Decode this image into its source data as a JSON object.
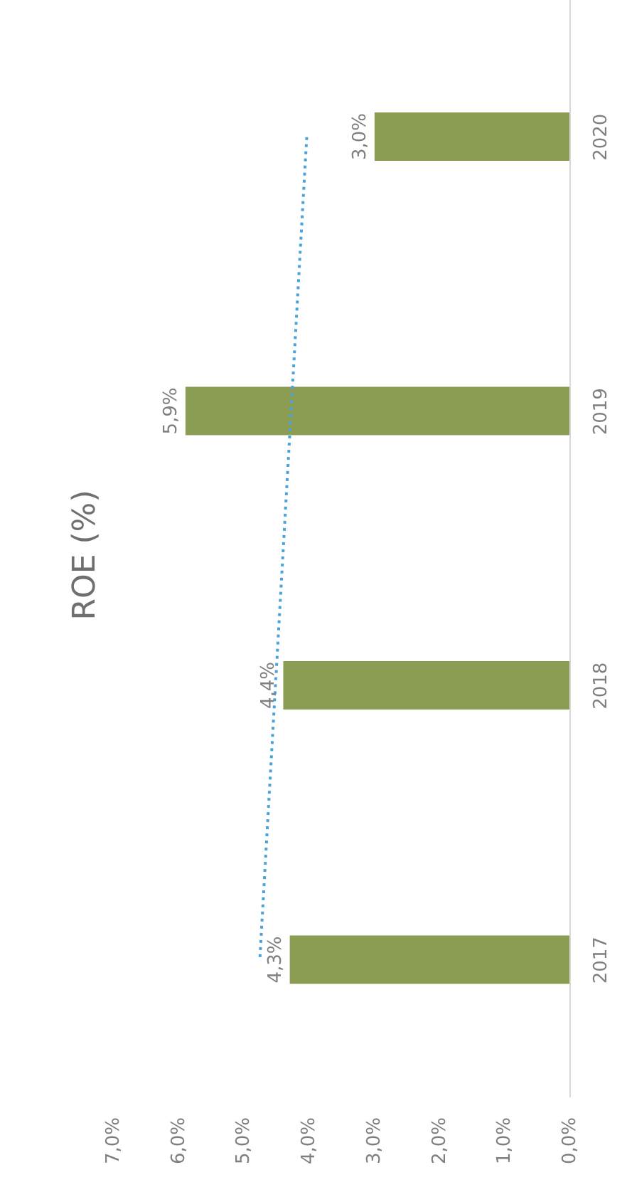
{
  "chart_data": {
    "type": "bar",
    "orientation": "horizontal",
    "title": "ROE (%)",
    "categories": [
      "2020",
      "2019",
      "2018",
      "2017"
    ],
    "series": [
      {
        "color": "#8b9d52",
        "values": [
          3.0,
          5.9,
          4.4,
          4.3
        ],
        "value_labels": [
          "3,0%",
          "5,9%",
          "4,4%",
          "4,3%"
        ]
      },
      {
        "type": "line",
        "color": "#4aa3d8",
        "values": [
          4.04,
          4.28,
          4.52,
          4.76
        ],
        "line_style": "dotted",
        "marker": "none"
      }
    ],
    "xlim": [
      7,
      0
    ],
    "xticks": [
      {
        "value": 7,
        "label": "7,0%"
      },
      {
        "value": 6,
        "label": "6,0%"
      },
      {
        "value": 5,
        "label": "5,0%"
      },
      {
        "value": 4,
        "label": "4,0%"
      },
      {
        "value": 3,
        "label": "3,0%"
      },
      {
        "value": 2,
        "label": "2,0%"
      },
      {
        "value": 1,
        "label": "1,0%"
      },
      {
        "value": 0,
        "label": "0,0%"
      }
    ],
    "grid": false,
    "legend": false
  }
}
